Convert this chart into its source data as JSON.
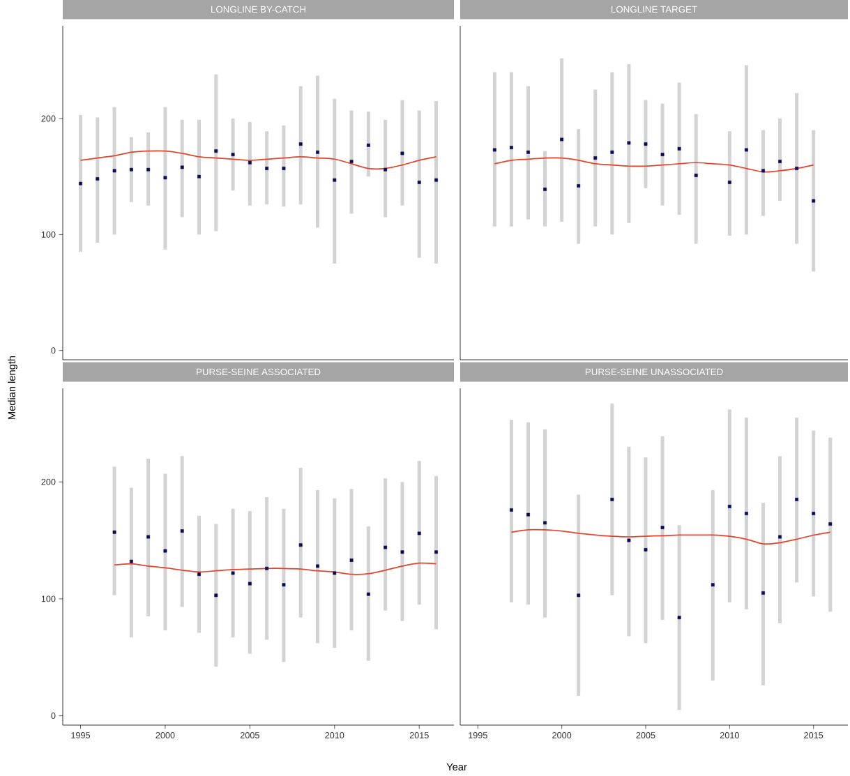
{
  "chart_data": [
    {
      "type": "scatter",
      "title": "LONGLINE BY-CATCH",
      "ylabel": "Median length",
      "xlim": [
        1993.95,
        2017.05
      ],
      "ylim": [
        -8,
        280
      ],
      "xticks": [
        1995,
        2000,
        2005,
        2010,
        2015
      ],
      "yticks": [
        0,
        100,
        200
      ],
      "tick_labels": "y",
      "series": [
        {
          "color": "#0b0b55",
          "marker": "square",
          "x": [
            1995,
            1996,
            1997,
            1998,
            1999,
            2000,
            2001,
            2002,
            2003,
            2004,
            2005,
            2006,
            2007,
            2008,
            2009,
            2010,
            2011,
            2012,
            2013,
            2014,
            2015,
            2016
          ],
          "values": [
            144,
            148,
            155,
            156,
            156,
            149,
            158,
            150,
            172,
            169,
            162,
            157,
            157,
            178,
            171,
            147,
            163,
            177,
            156,
            170,
            145,
            147
          ],
          "errors": [
            [
              85,
              203
            ],
            [
              93,
              201
            ],
            [
              100,
              210
            ],
            [
              128,
              184
            ],
            [
              125,
              188
            ],
            [
              87,
              210
            ],
            [
              115,
              199
            ],
            [
              100,
              199
            ],
            [
              103,
              238
            ],
            [
              138,
              200
            ],
            [
              125,
              197
            ],
            [
              126,
              189
            ],
            [
              124,
              194
            ],
            [
              126,
              228
            ],
            [
              106,
              237
            ],
            [
              75,
              217
            ],
            [
              118,
              207
            ],
            [
              150,
              206
            ],
            [
              115,
              199
            ],
            [
              125,
              216
            ],
            [
              80,
              207
            ],
            [
              75,
              215
            ]
          ]
        },
        {
          "type": "line",
          "marker": "none",
          "color": "#e5432b",
          "x": [
            1995,
            1996,
            1997,
            1998,
            1999,
            2000,
            2001,
            2002,
            2003,
            2004,
            2005,
            2006,
            2007,
            2008,
            2009,
            2010,
            2011,
            2012,
            2013,
            2014,
            2015,
            2016
          ],
          "values": [
            164,
            166,
            168,
            171,
            172,
            172,
            170,
            167,
            166,
            165,
            164,
            165,
            166,
            167,
            166,
            165,
            161,
            157,
            157,
            160,
            164,
            167
          ]
        }
      ]
    },
    {
      "type": "scatter",
      "title": "LONGLINE TARGET",
      "xlim": [
        1993.95,
        2017.05
      ],
      "ylim": [
        -8,
        280
      ],
      "xticks": [
        1995,
        2000,
        2005,
        2010,
        2015
      ],
      "yticks": [
        0,
        100,
        200
      ],
      "tick_labels": false,
      "series": [
        {
          "color": "#0b0b55",
          "marker": "square",
          "x": [
            1996,
            1997,
            1998,
            1999,
            2000,
            2001,
            2002,
            2003,
            2004,
            2005,
            2006,
            2007,
            2008,
            2010,
            2011,
            2012,
            2013,
            2014,
            2015
          ],
          "values": [
            173,
            175,
            171,
            139,
            182,
            142,
            166,
            171,
            179,
            178,
            169,
            174,
            151,
            145,
            173,
            155,
            163,
            157,
            129
          ],
          "errors": [
            [
              107,
              240
            ],
            [
              107,
              240
            ],
            [
              113,
              228
            ],
            [
              107,
              172
            ],
            [
              111,
              252
            ],
            [
              92,
              191
            ],
            [
              107,
              225
            ],
            [
              100,
              240
            ],
            [
              110,
              247
            ],
            [
              140,
              216
            ],
            [
              125,
              213
            ],
            [
              117,
              231
            ],
            [
              92,
              204
            ],
            [
              99,
              189
            ],
            [
              100,
              246
            ],
            [
              116,
              190
            ],
            [
              129,
              200
            ],
            [
              92,
              222
            ],
            [
              68,
              190
            ]
          ]
        },
        {
          "type": "line",
          "marker": "none",
          "color": "#e5432b",
          "x": [
            1996,
            1997,
            1998,
            1999,
            2000,
            2001,
            2002,
            2003,
            2004,
            2005,
            2006,
            2007,
            2008,
            2009,
            2010,
            2011,
            2012,
            2013,
            2014,
            2015
          ],
          "values": [
            161,
            164,
            165,
            166,
            166,
            164,
            161,
            160,
            159,
            159,
            160,
            161,
            162,
            161,
            160,
            157,
            154,
            155,
            157,
            160
          ]
        }
      ]
    },
    {
      "type": "scatter",
      "title": "PURSE-SEINE ASSOCIATED",
      "xlabel": "Year",
      "xlim": [
        1993.95,
        2017.05
      ],
      "ylim": [
        -8,
        280
      ],
      "xticks": [
        1995,
        2000,
        2005,
        2010,
        2015
      ],
      "yticks": [
        0,
        100,
        200
      ],
      "series": [
        {
          "color": "#0b0b55",
          "marker": "square",
          "x": [
            1997,
            1998,
            1999,
            2000,
            2001,
            2002,
            2003,
            2004,
            2005,
            2006,
            2007,
            2008,
            2009,
            2010,
            2011,
            2012,
            2013,
            2014,
            2015,
            2016
          ],
          "values": [
            157,
            132,
            153,
            141,
            158,
            121,
            103,
            122,
            113,
            126,
            112,
            146,
            128,
            122,
            133,
            104,
            144,
            140,
            156,
            140
          ],
          "errors": [
            [
              103,
              213
            ],
            [
              67,
              195
            ],
            [
              85,
              220
            ],
            [
              73,
              207
            ],
            [
              93,
              222
            ],
            [
              71,
              171
            ],
            [
              42,
              164
            ],
            [
              67,
              177
            ],
            [
              53,
              175
            ],
            [
              65,
              187
            ],
            [
              46,
              177
            ],
            [
              84,
              212
            ],
            [
              62,
              193
            ],
            [
              58,
              186
            ],
            [
              73,
              194
            ],
            [
              47,
              162
            ],
            [
              90,
              203
            ],
            [
              81,
              200
            ],
            [
              95,
              218
            ],
            [
              74,
              205
            ]
          ]
        },
        {
          "type": "line",
          "marker": "none",
          "color": "#e5432b",
          "x": [
            1997,
            1998,
            1999,
            2000,
            2001,
            2002,
            2003,
            2004,
            2005,
            2006,
            2007,
            2008,
            2009,
            2010,
            2011,
            2012,
            2013,
            2014,
            2015,
            2016
          ],
          "values": [
            129,
            130,
            128,
            126.5,
            124.5,
            123,
            124,
            125,
            125.5,
            126,
            126,
            125.5,
            124,
            123,
            121,
            121.5,
            124.5,
            128,
            130.5,
            130
          ]
        }
      ]
    },
    {
      "type": "scatter",
      "title": "PURSE-SEINE UNASSOCIATED",
      "xlim": [
        1993.95,
        2017.05
      ],
      "ylim": [
        -8,
        280
      ],
      "xticks": [
        1995,
        2000,
        2005,
        2010,
        2015
      ],
      "yticks": [
        0,
        100,
        200
      ],
      "tick_labels": "x",
      "series": [
        {
          "color": "#0b0b55",
          "marker": "square",
          "x": [
            1997,
            1998,
            1999,
            2001,
            2003,
            2004,
            2005,
            2006,
            2007,
            2009,
            2010,
            2011,
            2012,
            2013,
            2014,
            2015,
            2016
          ],
          "values": [
            176,
            172,
            165,
            103,
            185,
            150,
            142,
            161,
            84,
            112,
            179,
            173,
            105,
            153,
            185,
            173,
            164
          ],
          "errors": [
            [
              97,
              253
            ],
            [
              95,
              251
            ],
            [
              84,
              245
            ],
            [
              17,
              189
            ],
            [
              103,
              267
            ],
            [
              68,
              230
            ],
            [
              62,
              221
            ],
            [
              82,
              239
            ],
            [
              5,
              163
            ],
            [
              30,
              193
            ],
            [
              97,
              262
            ],
            [
              91,
              255
            ],
            [
              26,
              182
            ],
            [
              79,
              222
            ],
            [
              114,
              255
            ],
            [
              102,
              244
            ],
            [
              89,
              238
            ]
          ]
        },
        {
          "type": "line",
          "marker": "none",
          "color": "#e5432b",
          "x": [
            1997,
            1998,
            1999,
            2000,
            2001,
            2002,
            2003,
            2004,
            2005,
            2006,
            2007,
            2008,
            2009,
            2010,
            2011,
            2012,
            2013,
            2014,
            2015,
            2016
          ],
          "values": [
            157,
            159,
            159,
            158,
            156,
            154.5,
            153.5,
            153,
            153.5,
            154,
            154.5,
            154.5,
            154.5,
            153.5,
            151,
            147,
            148,
            151,
            154.5,
            157
          ]
        }
      ]
    }
  ]
}
